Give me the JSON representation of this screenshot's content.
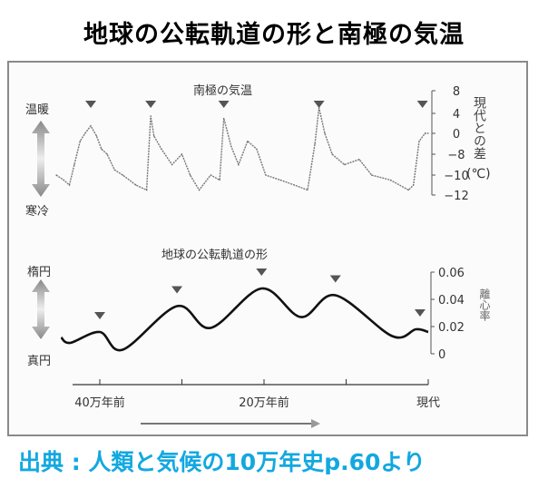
{
  "title": "地球の公転軌道の形と南極の気温",
  "source": "出典 : 人類と気候の10万年史p.60より",
  "colors": {
    "title": "#000000",
    "source": "#12a8e0",
    "line": "#222222",
    "marker": "#555555",
    "frame": "#8a8a8a"
  },
  "chart_data": [
    {
      "type": "line",
      "title": "南極の気温",
      "ylabel": "現代との差",
      "yunit": "(℃)",
      "left_labels": {
        "top": "温暖",
        "bottom": "寒冷"
      },
      "y_ticks": [
        8,
        4,
        0,
        -8,
        -10,
        -12
      ],
      "ylim": [
        -12,
        8
      ],
      "x_unit_note": "thousand years, 0 = present",
      "xlim": [
        -455,
        0
      ],
      "series": [
        {
          "x": [
            -453,
            -444,
            -437,
            -431,
            -424,
            -418,
            -411,
            -404,
            -398,
            -391,
            -382,
            -372,
            -356,
            -343,
            -338,
            -334,
            -325,
            -312,
            -300,
            -290,
            -279,
            -265,
            -254,
            -249,
            -240,
            -231,
            -220,
            -209,
            -198,
            -180,
            -163,
            -147,
            -138,
            -133,
            -126,
            -117,
            -102,
            -84,
            -69,
            -46,
            -24,
            -18,
            -11,
            -4,
            0
          ],
          "y": [
            -10,
            -10.5,
            -11,
            -9,
            -3,
            0,
            1.5,
            -1,
            -6,
            -8,
            -9.5,
            -10,
            -11,
            -11.5,
            3.5,
            -1,
            -6,
            -9,
            -8,
            -10,
            -11.5,
            -10,
            -10.5,
            3,
            -5,
            -9,
            -3,
            -6,
            -10,
            -10.5,
            -11,
            -11.5,
            -4,
            5,
            0,
            -8,
            -9,
            -8.5,
            -10,
            -10.5,
            -11.5,
            -11,
            -3,
            0,
            0
          ]
        }
      ],
      "markers_x": [
        -411,
        -338,
        -249,
        -133,
        -7
      ]
    },
    {
      "type": "line",
      "title": "地球の公転軌道の形",
      "ylabel": "離心率",
      "left_labels": {
        "top": "楕円",
        "bottom": "真円"
      },
      "y_ticks": [
        "0.06",
        "0.04",
        "0.02",
        "0"
      ],
      "ylim": [
        0,
        0.06
      ],
      "xlim": [
        -455,
        0
      ],
      "series": [
        {
          "x": [
            -447,
            -436,
            -400,
            -372,
            -306,
            -265,
            -203,
            -155,
            -113,
            -44,
            -15,
            0
          ],
          "y": [
            0.012,
            0.008,
            0.016,
            0.003,
            0.035,
            0.019,
            0.048,
            0.027,
            0.043,
            0.013,
            0.018,
            0.016
          ]
        }
      ],
      "markers_x": [
        -400,
        -306,
        -203,
        -113,
        -10
      ],
      "x_tick_values": [
        -400,
        -300,
        -200,
        -100,
        0
      ],
      "x_tick_labels": [
        {
          "x": -400,
          "label": "40万年前"
        },
        {
          "x": -200,
          "label": "20万年前"
        },
        {
          "x": 0,
          "label": "現代"
        }
      ],
      "time_arrow": "right"
    }
  ]
}
